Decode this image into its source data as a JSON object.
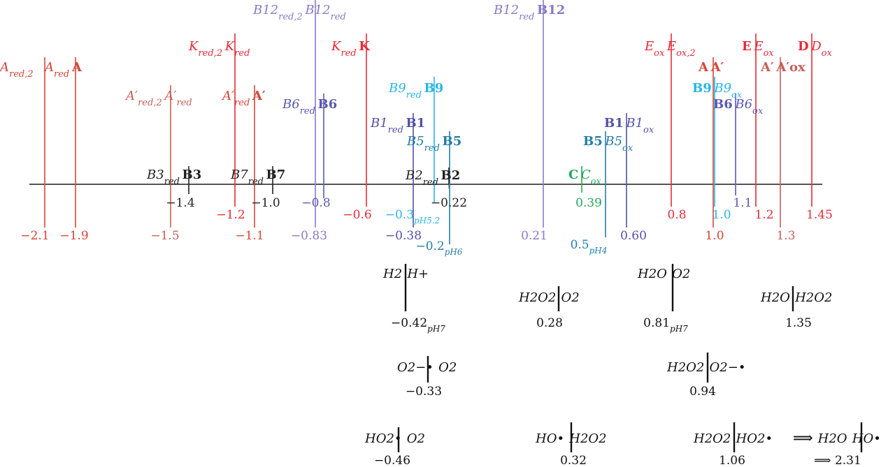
{
  "colors": {
    "axis": "#555555",
    "A": "#d4463a",
    "K": "#e62b36",
    "E": "#e62b36",
    "D": "#e62b36",
    "Aprime": "#c46058",
    "B12": "#8a7ac8",
    "B9": "#29b6e6",
    "B6": "#5b59b0",
    "B1": "#5252a6",
    "B5": "#237ea8",
    "B2": "#222222",
    "B3": "#222222",
    "B7": "#222222",
    "C": "#22a858",
    "ref": "#111111"
  },
  "axis_ticks": [
    "−1.4",
    "−1.2",
    "−1.0",
    "−0.8",
    "−0.6",
    "−0.3pH5.2",
    "−0.22",
    "0.39",
    "0.8",
    "1.0",
    "1.1",
    "1.2",
    "1.45"
  ],
  "lines": [
    {
      "id": "a-red2",
      "value": "−2.1",
      "top_label": "A_red,2",
      "color": "A"
    },
    {
      "id": "a-red",
      "value": "−1.9",
      "top_label": "A_red|A",
      "color": "A"
    },
    {
      "id": "k-red2",
      "value": "−1.2",
      "top_label": "K_red,2|K_red",
      "color": "K"
    },
    {
      "id": "ap-red2",
      "value": "−1.5",
      "top_label": "A′_red,2|A′_red",
      "color": "Aprime"
    },
    {
      "id": "ap-red",
      "value": "−1.1",
      "top_label": "A′_red|A′",
      "color": "A"
    },
    {
      "id": "b12-red2",
      "value": "−0.83",
      "top_label": "B12_red,2|B12_red",
      "color": "B12"
    },
    {
      "id": "b6-red",
      "value": "−0.8",
      "top_label": "B6_red|B6",
      "color": "B6"
    },
    {
      "id": "k-red",
      "value": "−0.6",
      "top_label": "K_red|K",
      "color": "K"
    },
    {
      "id": "b9-red",
      "value": "−0.3pH5.2",
      "top_label": "B9_red|B9",
      "color": "B9"
    },
    {
      "id": "b1-red",
      "value": "−0.38",
      "top_label": "B1_red|B1",
      "color": "B1"
    },
    {
      "id": "b5-red",
      "value": "−0.2pH6",
      "top_label": "B5_red|B5",
      "color": "B5"
    },
    {
      "id": "b2-red",
      "value": "−0.22",
      "top_label": "B2_red|B2",
      "color": "B2"
    },
    {
      "id": "b3-red",
      "value": "−1.4",
      "top_label": "B3_red|B3",
      "color": "B3"
    },
    {
      "id": "b7-red",
      "value": "−1.0",
      "top_label": "B7_red|B7",
      "color": "B7"
    },
    {
      "id": "b12-red",
      "value": "0.21",
      "top_label": "B12_red|B12",
      "color": "B12"
    },
    {
      "id": "c-ox",
      "value": "0.39",
      "top_label": "C|C_ox",
      "color": "C"
    },
    {
      "id": "b5-ox",
      "value": "0.5pH4",
      "top_label": "B5|B5_ox",
      "color": "B5"
    },
    {
      "id": "b1-ox",
      "value": "0.60",
      "top_label": "B1|B1_ox",
      "color": "B1"
    },
    {
      "id": "e-ox",
      "value": "0.8",
      "top_label": "E_ox|E_ox,2",
      "color": "E"
    },
    {
      "id": "a-ox",
      "value": "1.0",
      "top_label": "A|A′",
      "color": "A"
    },
    {
      "id": "b9-ox",
      "value": "1.0",
      "top_label": "B9|B9_ox",
      "color": "B9"
    },
    {
      "id": "b6-ox",
      "value": "1.1",
      "top_label": "B6|B6_ox",
      "color": "B6"
    },
    {
      "id": "e-ox2",
      "value": "1.2",
      "top_label": "E|E_ox",
      "color": "E"
    },
    {
      "id": "ap-ox",
      "value": "1.3",
      "top_label": "A′|A′ox",
      "color": "Aprime"
    },
    {
      "id": "d-ox",
      "value": "1.45",
      "top_label": "D|D_ox",
      "color": "D"
    }
  ],
  "reference_couples": [
    {
      "id": "h2-hplus",
      "couple": "H2|H+",
      "value": "−0.42pH7"
    },
    {
      "id": "h2o2-o2",
      "couple": "H2O2|O2",
      "value": "0.28"
    },
    {
      "id": "h2o-o2",
      "couple": "H2O|O2",
      "value": "0.81pH7"
    },
    {
      "id": "h2o-h2o2",
      "couple": "H2O|H2O2",
      "value": "1.35"
    },
    {
      "id": "superoxide-o2",
      "couple": "O2−•|O2",
      "value": "−0.33"
    },
    {
      "id": "h2o2-superoxide",
      "couple": "H2O2|O2−•",
      "value": "0.94"
    },
    {
      "id": "ho2-o2",
      "couple": "HO2•|O2",
      "value": "−0.46"
    },
    {
      "id": "ho-h2o2",
      "couple": "HO•|H2O2",
      "value": "0.32"
    },
    {
      "id": "h2o2-ho2",
      "couple": "H2O2|HO2•",
      "value": "1.06"
    },
    {
      "id": "h2o-ho",
      "couple": "H2O|HO•",
      "value": "2.31",
      "prefix": "⟹"
    }
  ],
  "implies_symbol": "⟹"
}
